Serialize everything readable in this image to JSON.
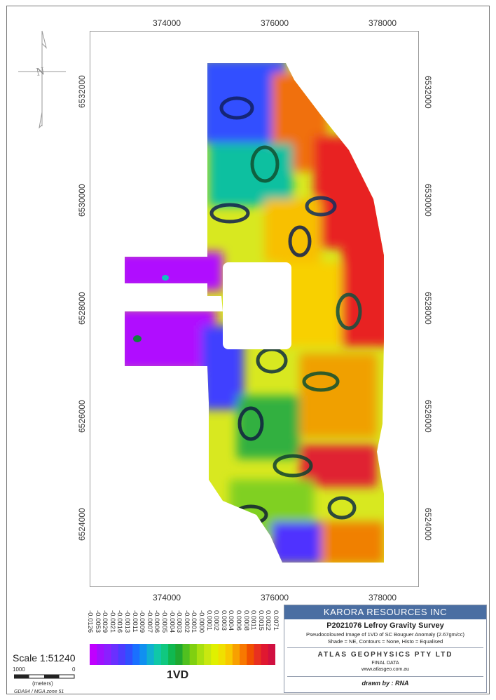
{
  "map": {
    "x_ticks": [
      "374000",
      "376000",
      "378000"
    ],
    "y_ticks": [
      "6532000",
      "6530000",
      "6528000",
      "6526000",
      "6524000"
    ],
    "north_label": "N"
  },
  "legend": {
    "title": "1VD",
    "labels": [
      "-0.0126",
      "-0.0053",
      "-0.0029",
      "-0.0021",
      "-0.0016",
      "-0.0013",
      "-0.0011",
      "-0.0009",
      "-0.0007",
      "-0.0006",
      "-0.0005",
      "-0.0004",
      "-0.0003",
      "-0.0002",
      "-0.0001",
      "-0.0000",
      "0.0001",
      "0.0002",
      "0.0003",
      "0.0004",
      "0.0006",
      "0.0008",
      "0.0011",
      "0.0015",
      "0.0022",
      "0.0071"
    ],
    "colors": [
      "#c000ff",
      "#a010ff",
      "#8a20ff",
      "#6a30ff",
      "#4c3cff",
      "#3050ff",
      "#1a70ff",
      "#1090f0",
      "#10b0d0",
      "#10c8a8",
      "#10c880",
      "#10b850",
      "#20a830",
      "#50c020",
      "#80d010",
      "#a8e010",
      "#c8e810",
      "#e0f000",
      "#f0e000",
      "#f8c800",
      "#f8a000",
      "#f87800",
      "#f05000",
      "#e83020",
      "#e01830",
      "#d01040"
    ]
  },
  "scale": {
    "label": "Scale 1:51240",
    "left_value": "1000",
    "right_value": "0",
    "units": "(meters)",
    "datum": "GDA94 / MGA zone 51"
  },
  "title_block": {
    "company": "KARORA RESOURCES INC",
    "survey": "P2021076 Lefroy Gravity Survey",
    "description": "Pseudocoloured Image of 1VD of SC Bouguer Anomaly (2.67gm/cc)",
    "parameters": "Shade = NE, Contours = None, Histo = Equalised",
    "contractor": "ATLAS GEOPHYSICS PTY LTD",
    "status": "FINAL DATA",
    "website": "www.atlasgeo.com.au",
    "drawn_by": "drawn by : RNA"
  }
}
